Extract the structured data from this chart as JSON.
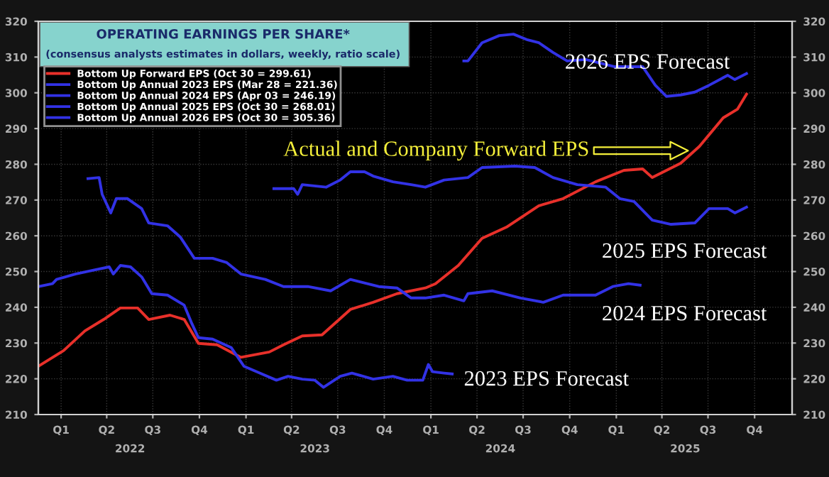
{
  "chart_data": {
    "type": "line",
    "title": "OPERATING EARNINGS PER SHARE*",
    "subtitle": "(consensus analysts estimates in dollars, weekly, ratio scale)",
    "series": [
      {
        "name": "Bottom Up Forward EPS (Oct 30 = 299.61)",
        "color": "#e8302a",
        "x": [
          "2022-01-01",
          "2022-02-20",
          "2022-04-03",
          "2022-05-10",
          "2022-06-12",
          "2022-07-16",
          "2022-08-07",
          "2022-09-18",
          "2022-10-16",
          "2022-11-13",
          "2022-12-20",
          "2023-02-05",
          "2023-04-02",
          "2023-04-30",
          "2023-06-06",
          "2023-07-15",
          "2023-09-09",
          "2023-10-24",
          "2023-12-10",
          "2024-02-04",
          "2024-02-24",
          "2024-04-09",
          "2024-05-26",
          "2024-07-13",
          "2024-09-15",
          "2024-11-02",
          "2025-01-05",
          "2025-03-02",
          "2025-04-08",
          "2025-04-27",
          "2025-06-22",
          "2025-07-29",
          "2025-09-14",
          "2025-10-12",
          "2025-10-30"
        ],
        "values": [
          223.5,
          227.9,
          233.4,
          236.6,
          239.8,
          239.8,
          236.6,
          237.8,
          236.6,
          229.9,
          229.5,
          226,
          227.5,
          229.5,
          232,
          232.3,
          239.4,
          241.4,
          243.8,
          245.4,
          246.6,
          251.7,
          259.3,
          262.4,
          268.4,
          270.4,
          275.1,
          278.3,
          278.7,
          276.3,
          280.3,
          285,
          293,
          295.4,
          299.61
        ]
      },
      {
        "name": "Bottom Up Annual 2023 EPS (Mar 28 = 221.36)",
        "color": "#3232e6",
        "x": [
          "2022-01-01",
          "2022-01-29",
          "2022-02-06",
          "2022-03-15",
          "2022-04-23",
          "2022-05-21",
          "2022-05-29",
          "2022-06-12",
          "2022-07-02",
          "2022-07-24",
          "2022-08-13",
          "2022-09-13",
          "2022-10-16",
          "2022-10-30",
          "2022-11-13",
          "2022-12-11",
          "2023-01-17",
          "2023-02-11",
          "2023-03-14",
          "2023-04-16",
          "2023-05-09",
          "2023-06-06",
          "2023-07-01",
          "2023-07-18",
          "2023-08-20",
          "2023-09-12",
          "2023-10-24",
          "2023-12-02",
          "2023-12-30",
          "2024-01-30",
          "2024-02-10",
          "2024-02-18",
          "2024-03-12",
          "2024-03-28"
        ],
        "values": [
          245.8,
          246.6,
          247.8,
          249.3,
          250.5,
          251.3,
          249.3,
          251.7,
          251.3,
          248.5,
          243.8,
          243.4,
          240.6,
          235.8,
          231.5,
          231.1,
          228.7,
          223.5,
          221.6,
          219.6,
          220.7,
          219.9,
          219.6,
          217.6,
          220.7,
          221.6,
          219.9,
          220.7,
          219.6,
          219.6,
          224,
          222,
          221.6,
          221.36
        ]
      },
      {
        "name": "Bottom Up Annual 2024 EPS (Apr 03 = 246.19)",
        "color": "#3232e6",
        "x": [
          "2022-04-09",
          "2022-05-01",
          "2022-05-07",
          "2022-05-24",
          "2022-06-04",
          "2022-06-26",
          "2022-07-24",
          "2022-08-07",
          "2022-09-13",
          "2022-10-08",
          "2022-11-05",
          "2022-12-11",
          "2023-01-08",
          "2023-02-05",
          "2023-03-25",
          "2023-04-30",
          "2023-06-17",
          "2023-08-01",
          "2023-09-09",
          "2023-11-04",
          "2023-12-10",
          "2024-01-07",
          "2024-02-04",
          "2024-03-12",
          "2024-04-20",
          "2024-04-28",
          "2024-06-15",
          "2024-08-10",
          "2024-09-24",
          "2024-11-02",
          "2025-01-05",
          "2025-02-08",
          "2025-03-11",
          "2025-04-03"
        ],
        "values": [
          276,
          276.3,
          271.6,
          266.4,
          270.4,
          270.4,
          267.6,
          263.6,
          262.8,
          259.7,
          253.7,
          253.7,
          252.5,
          249.3,
          247.8,
          245.8,
          245.8,
          244.6,
          247.8,
          245.8,
          245.4,
          242.6,
          242.6,
          243.4,
          241.8,
          243.8,
          244.6,
          242.6,
          241.4,
          243.4,
          243.4,
          245.8,
          246.6,
          246.19
        ]
      },
      {
        "name": "Bottom Up Annual 2025 EPS (Oct 30 = 268.01)",
        "color": "#3232e6",
        "x": [
          "2023-04-11",
          "2023-05-20",
          "2023-05-28",
          "2023-06-06",
          "2023-07-23",
          "2023-08-20",
          "2023-09-09",
          "2023-10-07",
          "2023-10-24",
          "2023-12-02",
          "2024-01-07",
          "2024-02-04",
          "2024-03-12",
          "2024-04-28",
          "2024-05-26",
          "2024-07-30",
          "2024-09-07",
          "2024-10-13",
          "2024-11-30",
          "2025-01-25",
          "2025-02-22",
          "2025-03-22",
          "2025-04-27",
          "2025-06-03",
          "2025-07-20",
          "2025-08-17",
          "2025-09-23",
          "2025-10-07",
          "2025-10-30"
        ],
        "values": [
          273.2,
          273.2,
          271.6,
          274.3,
          273.6,
          275.6,
          277.9,
          277.9,
          276.7,
          275.1,
          274.3,
          273.6,
          275.6,
          276.3,
          279.1,
          279.5,
          279.1,
          276.3,
          274.3,
          273.6,
          270.4,
          269.6,
          264.4,
          263.2,
          263.6,
          267.6,
          267.6,
          266.4,
          268.01
        ]
      },
      {
        "name": "Bottom Up Annual 2026 EPS (Oct 30 = 305.36)",
        "color": "#3232e6",
        "x": [
          "2024-04-20",
          "2024-04-28",
          "2024-05-26",
          "2024-06-29",
          "2024-07-27",
          "2024-08-24",
          "2024-09-15",
          "2024-10-13",
          "2024-11-10",
          "2024-12-17",
          "2025-02-11",
          "2025-04-08",
          "2025-05-03",
          "2025-05-25",
          "2025-06-22",
          "2025-07-20",
          "2025-08-17",
          "2025-09-23",
          "2025-10-07",
          "2025-10-30"
        ],
        "values": [
          308.9,
          308.9,
          314,
          316,
          316.4,
          314.8,
          314,
          311.3,
          308.9,
          309.3,
          307.3,
          307.3,
          302.1,
          299,
          299.4,
          300.2,
          302.1,
          304.9,
          303.7,
          305.36
        ]
      }
    ],
    "xlim": [
      "2022-01-01",
      "2026-01-28"
    ],
    "xticks": [
      {
        "value": "2022-02-15",
        "label": "Q1"
      },
      {
        "value": "2022-05-16",
        "label": "Q2"
      },
      {
        "value": "2022-08-15",
        "label": "Q3"
      },
      {
        "value": "2022-11-15",
        "label": "Q4"
      },
      {
        "value": "2023-02-15",
        "label": "Q1"
      },
      {
        "value": "2023-05-16",
        "label": "Q2"
      },
      {
        "value": "2023-08-15",
        "label": "Q3"
      },
      {
        "value": "2023-11-15",
        "label": "Q4"
      },
      {
        "value": "2024-02-15",
        "label": "Q1"
      },
      {
        "value": "2024-05-16",
        "label": "Q2"
      },
      {
        "value": "2024-08-15",
        "label": "Q3"
      },
      {
        "value": "2024-11-15",
        "label": "Q4"
      },
      {
        "value": "2025-02-15",
        "label": "Q1"
      },
      {
        "value": "2025-05-16",
        "label": "Q2"
      },
      {
        "value": "2025-08-15",
        "label": "Q3"
      },
      {
        "value": "2025-11-15",
        "label": "Q4"
      }
    ],
    "x2lim": [
      "2022-01-01",
      "2026-01-28"
    ],
    "x2ticks": [
      {
        "value": "2022-07-01",
        "label": "2022"
      },
      {
        "value": "2023-07-01",
        "label": "2023"
      },
      {
        "value": "2024-07-01",
        "label": "2024"
      },
      {
        "value": "2025-07-01",
        "label": "2025"
      }
    ],
    "ylim": [
      210,
      320
    ],
    "yticks": [
      210,
      220,
      230,
      240,
      250,
      260,
      270,
      280,
      290,
      300,
      310,
      320
    ],
    "y2lim": [
      210,
      320
    ],
    "y2ticks": [
      210,
      220,
      230,
      240,
      250,
      260,
      270,
      280,
      290,
      300,
      310,
      320
    ],
    "grid": true,
    "legend": "top left",
    "line_style": "solid",
    "annotations": [
      "Actual and Company Forward EPS",
      "2026 EPS Forecast",
      "2025 EPS Forecast",
      "2024 EPS Forecast",
      "2023 EPS Forecast"
    ]
  }
}
